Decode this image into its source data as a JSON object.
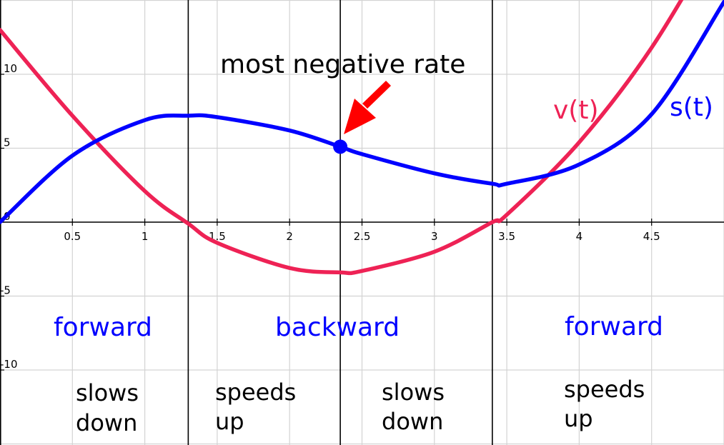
{
  "chart_data": {
    "type": "line",
    "title": "",
    "xlabel": "",
    "ylabel": "",
    "xlim": [
      0,
      5
    ],
    "ylim": [
      -15,
      15
    ],
    "grid": true,
    "x_ticks": [
      "0.5",
      "1",
      "1.5",
      "2",
      "2.5",
      "3",
      "3.5",
      "4",
      "4.5"
    ],
    "y_ticks": [
      "10",
      "5",
      "0",
      "-5",
      "-10"
    ],
    "x": [
      0,
      0.5,
      1,
      1.3,
      1.5,
      2,
      2.35,
      2.5,
      3,
      3.4,
      3.5,
      4,
      4.5,
      5
    ],
    "series": [
      {
        "name": "s(t)",
        "color": "#0000ff",
        "values": [
          0,
          4.5,
          6.9,
          7.2,
          7.1,
          6.2,
          5.1,
          4.6,
          3.3,
          2.6,
          2.6,
          3.9,
          7.3,
          14.9
        ]
      },
      {
        "name": "v(t)",
        "color": "#ee2255",
        "values": [
          13,
          7.2,
          2.1,
          -0.1,
          -1.4,
          -3.1,
          -3.4,
          -3.3,
          -2.0,
          0,
          0.5,
          5.4,
          11.8,
          20.0
        ]
      }
    ],
    "vertical_lines": [
      1.3,
      2.35,
      3.4
    ],
    "point": {
      "x": 2.35,
      "y": 5.1,
      "color": "#0000ff"
    },
    "annotations": {
      "arrow_label": "most negative rate",
      "arrow_color": "#ff0000",
      "v_label": "v(t)",
      "s_label": "s(t)",
      "direction": [
        "forward",
        "backward",
        "forward"
      ],
      "motion": [
        [
          "slows",
          "down"
        ],
        [
          "speeds",
          "up"
        ],
        [
          "slows",
          "down"
        ],
        [
          "speeds",
          "up"
        ]
      ]
    }
  }
}
